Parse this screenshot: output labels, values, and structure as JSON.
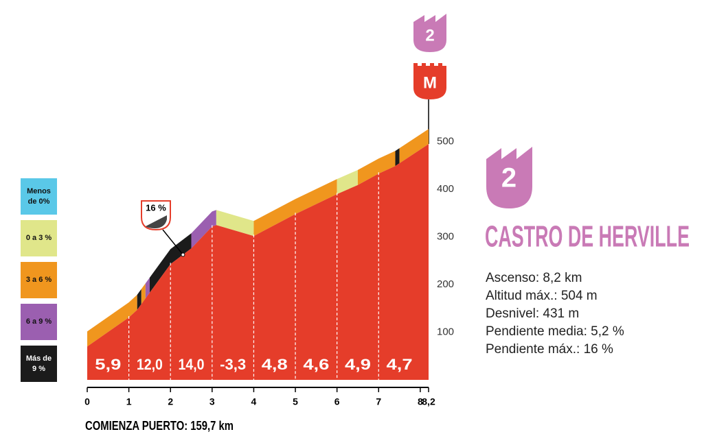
{
  "chart_data": {
    "type": "profile",
    "x": [
      0,
      1,
      1.2,
      2,
      2.5,
      3,
      3.1,
      4,
      5,
      6,
      6.5,
      7,
      7.4,
      8.2
    ],
    "series": [
      {
        "color": "#e53d2a",
        "values": [
          70,
          131,
          147,
          243,
          276,
          322,
          325,
          302,
          348,
          390,
          409,
          433,
          449,
          495
        ]
      }
    ],
    "xlim": [
      0,
      8.2
    ],
    "xticks": [
      0,
      1,
      2,
      3,
      4,
      5,
      6,
      7,
      8,
      {
        "value": 8.2,
        "label": "8,2"
      }
    ],
    "ylim": [
      0,
      560
    ],
    "yticks": [
      100,
      200,
      300,
      400,
      500
    ],
    "bands": [
      {
        "from": 0,
        "to": 1.2,
        "color": "#f0961e"
      },
      {
        "from": 1.2,
        "to": 1.3,
        "color": "#1b1b1b"
      },
      {
        "from": 1.3,
        "to": 1.4,
        "color": "#f0961e"
      },
      {
        "from": 1.4,
        "to": 1.5,
        "color": "#9b5fb0"
      },
      {
        "from": 1.5,
        "to": 2.5,
        "color": "#1b1b1b"
      },
      {
        "from": 2.5,
        "to": 3.1,
        "color": "#9b5fb0"
      },
      {
        "from": 3.1,
        "to": 4,
        "color": "#e0e68a"
      },
      {
        "from": 4,
        "to": 6,
        "color": "#f0961e"
      },
      {
        "from": 6,
        "to": 6.5,
        "color": "#e0e68a"
      },
      {
        "from": 6.5,
        "to": 7.4,
        "color": "#f0961e"
      },
      {
        "from": 7.4,
        "to": 7.5,
        "color": "#1b1b1b"
      },
      {
        "from": 7.5,
        "to": 8.2,
        "color": "#f0961e"
      }
    ],
    "segments": {
      "values": [
        5.9,
        12.0,
        14.0,
        -3.3,
        4.8,
        4.6,
        4.9,
        4.7
      ],
      "value_labels": [
        "5,9",
        "12,0",
        "14,0",
        "-3,3",
        "4,8",
        "4,6",
        "4,9",
        "4,7"
      ]
    },
    "callout": {
      "label": "16 %",
      "x": 2.3
    },
    "legend": [
      {
        "label": "Menos de 0%",
        "color": "#5ac8e8"
      },
      {
        "label": "0 a 3 %",
        "color": "#e0e68a"
      },
      {
        "label": "3 a 6 %",
        "color": "#f0961e"
      },
      {
        "label": "6 a 9 %",
        "color": "#9b5fb0"
      },
      {
        "label": "Más de 9 %",
        "color": "#1b1b1b"
      }
    ],
    "category": "2",
    "summit_mark": "M",
    "name": "CASTRO DE HERVILLE",
    "stats": [
      "Ascenso: 8,2 km",
      "Altitud máx.: 504 m",
      "Desnivel: 431 m",
      "Pendiente media: 5,2 %",
      "Pendiente máx.: 16 %"
    ],
    "start": "COMIENZA PUERTO: 159,7 km"
  }
}
